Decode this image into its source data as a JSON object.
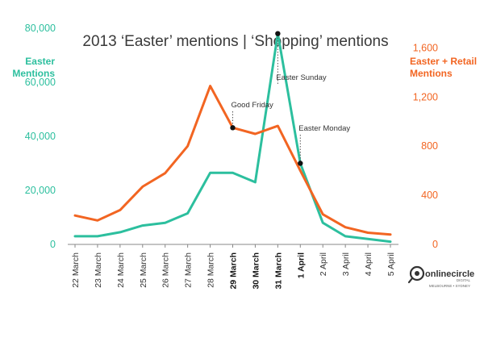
{
  "chart_data": {
    "type": "line",
    "title": "2013 ‘Easter’ mentions | ‘Shopping’ mentions",
    "left_axis_title": [
      "Easter",
      "Mentions"
    ],
    "right_axis_title": [
      "Easter + Retail",
      "Mentions"
    ],
    "categories": [
      "22 March",
      "23 March",
      "24 March",
      "25 March",
      "26 March",
      "27 March",
      "28 March",
      "29 March",
      "30 March",
      "31 March",
      "1 April",
      "2 April",
      "3 April",
      "4 April",
      "5 April"
    ],
    "bold_categories": [
      "29 March",
      "30 March",
      "31 March",
      "1 April"
    ],
    "left_ticks": [
      "0",
      "20,000",
      "40,000",
      "60,000",
      "80,000"
    ],
    "right_ticks": [
      "0",
      "400",
      "800",
      "1,200",
      "1,600"
    ],
    "ylim_left": [
      0,
      80000
    ],
    "ylim_right": [
      0,
      1760
    ],
    "series": [
      {
        "axis": "left",
        "color": "#2cbf9e",
        "values": [
          3000,
          3000,
          4500,
          7000,
          8000,
          11500,
          26500,
          26500,
          23000,
          78000,
          30000,
          8000,
          3000,
          2000,
          1000
        ]
      },
      {
        "axis": "right",
        "color": "#f26522",
        "values": [
          235,
          195,
          280,
          470,
          580,
          800,
          1290,
          950,
          900,
          965,
          600,
          245,
          140,
          95,
          80
        ]
      }
    ],
    "annotations": [
      {
        "label": "Good Friday",
        "category": "29 March",
        "series": 1
      },
      {
        "label": "Easter Sunday",
        "category": "31 March",
        "series": 0
      },
      {
        "label": "Easter Monday",
        "category": "1 April",
        "series": 0
      }
    ],
    "left_color": "#2cbf9e",
    "right_color": "#f26522",
    "grid": false
  },
  "logo": {
    "name": "onlinecircle",
    "subname": "DIGITAL",
    "tagline": "MELBOURNE • SYDNEY",
    "icon": "circle-logo-icon"
  }
}
